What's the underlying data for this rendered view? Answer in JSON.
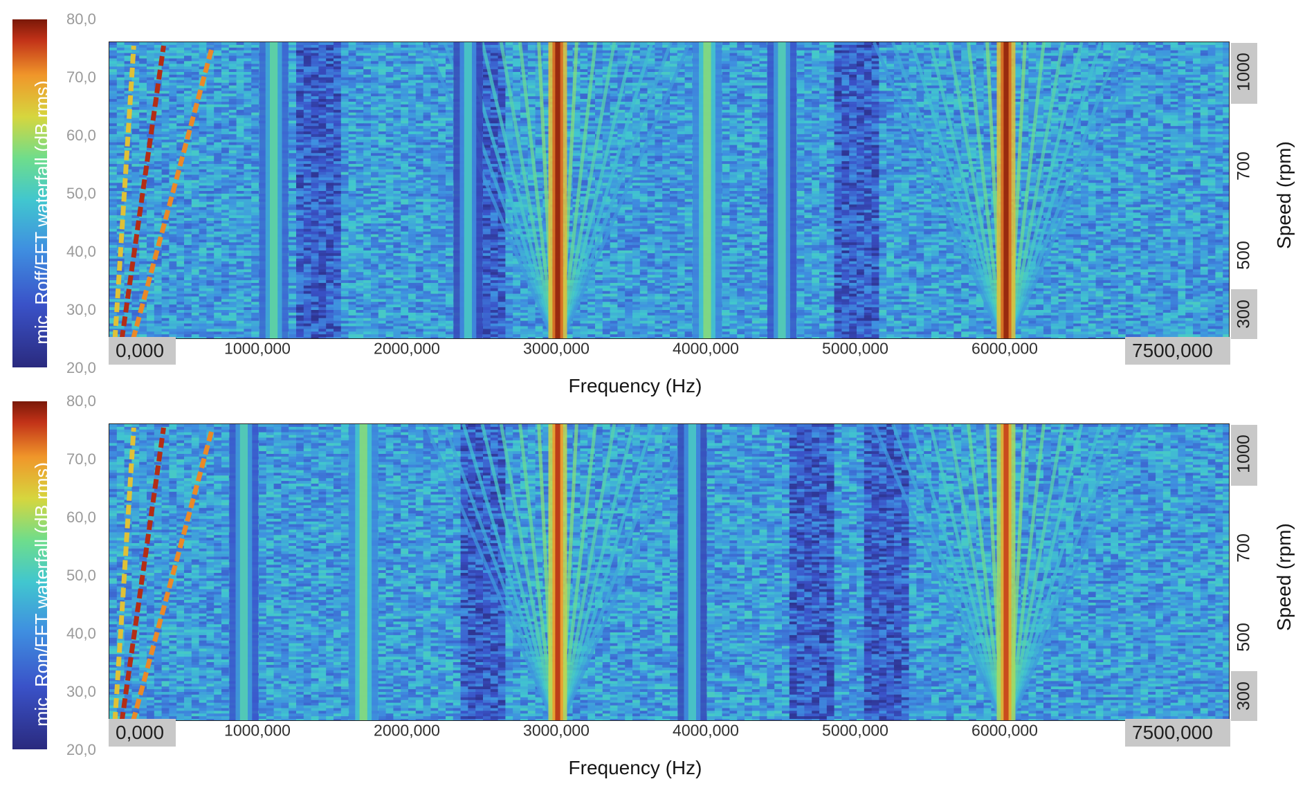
{
  "chart_data": [
    {
      "type": "heatmap",
      "colorbar_label": "mic_Roff/FFT waterfall (dB rms)",
      "colorbar_ticks": [
        "80,0",
        "70,0",
        "60,0",
        "50,0",
        "40,0",
        "30,0",
        "20,0"
      ],
      "colorbar_range": [
        20,
        80
      ],
      "xlabel": "Frequency (Hz)",
      "xticks": [
        "0,000",
        "1000,000",
        "2000,000",
        "3000,000",
        "4000,000",
        "5000,000",
        "6000,000",
        "7500,000"
      ],
      "xlim": [
        0,
        7500
      ],
      "ylabel": "Speed (rpm)",
      "yticks": [
        "1000",
        "700",
        "500",
        "300"
      ],
      "ylim": [
        250,
        1100
      ],
      "colormap": [
        "#2a2a7e",
        "#3a52c8",
        "#3f8fe0",
        "#41c6cf",
        "#6edd8c",
        "#d6d63e",
        "#f0962a",
        "#c23218",
        "#7a1808"
      ],
      "features": {
        "vertical_bands_hz": [
          {
            "hz": 3000,
            "level": 78
          },
          {
            "hz": 6000,
            "level": 78
          },
          {
            "hz": 4000,
            "level": 52
          },
          {
            "hz": 1100,
            "level": 48
          },
          {
            "hz": 4500,
            "level": 46
          },
          {
            "hz": 2400,
            "level": 44
          }
        ],
        "order_lines": [
          {
            "order": 20,
            "level": 74
          },
          {
            "order": 38,
            "level": 66
          },
          {
            "order": 9,
            "level": 60
          }
        ],
        "sidebands_hz": [
          3000,
          6000
        ],
        "quiet_bands_hz": [
          1400,
          2500,
          5000
        ]
      }
    },
    {
      "type": "heatmap",
      "colorbar_label": "mic_Ron/FFT waterfall (dB rms)",
      "colorbar_ticks": [
        "80,0",
        "70,0",
        "60,0",
        "50,0",
        "40,0",
        "30,0",
        "20,0"
      ],
      "colorbar_range": [
        20,
        80
      ],
      "xlabel": "Frequency (Hz)",
      "xticks": [
        "0,000",
        "1000,000",
        "2000,000",
        "3000,000",
        "4000,000",
        "5000,000",
        "6000,000",
        "7500,000"
      ],
      "xlim": [
        0,
        7500
      ],
      "ylabel": "Speed (rpm)",
      "yticks": [
        "1000",
        "700",
        "500",
        "300"
      ],
      "ylim": [
        250,
        1100
      ],
      "colormap": [
        "#2a2a7e",
        "#3a52c8",
        "#3f8fe0",
        "#41c6cf",
        "#6edd8c",
        "#d6d63e",
        "#f0962a",
        "#c23218",
        "#7a1808"
      ],
      "features": {
        "vertical_bands_hz": [
          {
            "hz": 3000,
            "level": 74
          },
          {
            "hz": 6000,
            "level": 72
          },
          {
            "hz": 1700,
            "level": 52
          },
          {
            "hz": 3900,
            "level": 44
          },
          {
            "hz": 900,
            "level": 46
          }
        ],
        "order_lines": [
          {
            "order": 20,
            "level": 74
          },
          {
            "order": 38,
            "level": 66
          },
          {
            "order": 9,
            "level": 60
          }
        ],
        "sidebands_hz": [
          3000,
          6000
        ],
        "quiet_bands_hz": [
          2500,
          4700,
          5200
        ]
      }
    }
  ]
}
